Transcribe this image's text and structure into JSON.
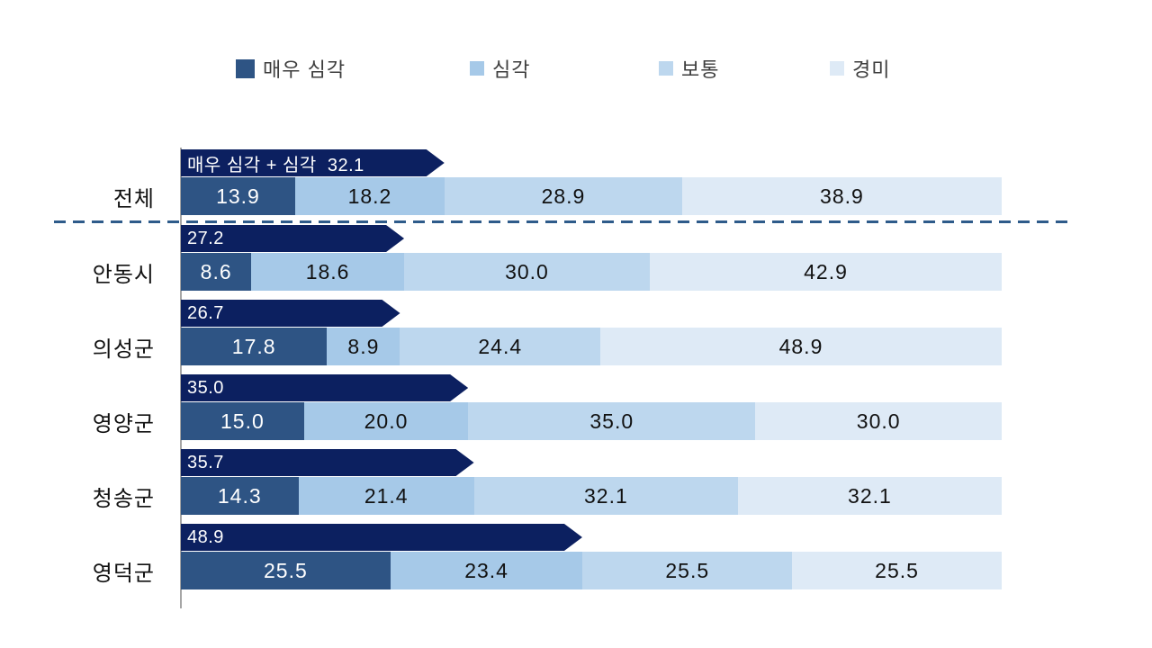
{
  "chart_data": {
    "type": "bar",
    "orientation": "horizontal-stacked",
    "title": "",
    "xlabel": "",
    "ylabel": "",
    "axis_max_percent": 100,
    "legend_position": "top",
    "legend": [
      {
        "label": "매우 심각",
        "color": "#2E5484"
      },
      {
        "label": "심각",
        "color": "#A6C9E8"
      },
      {
        "label": "보통",
        "color": "#BDD7EE"
      },
      {
        "label": "경미",
        "color": "#DEEAF6"
      }
    ],
    "callout": {
      "color": "#0C2060",
      "text_color": "#FFFFFF",
      "meaning": "매우 심각 + 심각 합계"
    },
    "separator_after_row_index": 0,
    "rows": [
      {
        "category": "전체",
        "values": [
          13.9,
          18.2,
          28.9,
          38.9
        ],
        "combined": 32.1,
        "callout_text": "매우 심각 + 심각  32.1"
      },
      {
        "category": "안동시",
        "values": [
          8.6,
          18.6,
          30.0,
          42.9
        ],
        "combined": 27.2,
        "callout_text": "27.2"
      },
      {
        "category": "의성군",
        "values": [
          17.8,
          8.9,
          24.4,
          48.9
        ],
        "combined": 26.7,
        "callout_text": "26.7"
      },
      {
        "category": "영양군",
        "values": [
          15.0,
          20.0,
          35.0,
          30.0
        ],
        "combined": 35.0,
        "callout_text": "35.0"
      },
      {
        "category": "청송군",
        "values": [
          14.3,
          21.4,
          32.1,
          32.1
        ],
        "combined": 35.7,
        "callout_text": "35.7"
      },
      {
        "category": "영덕군",
        "values": [
          25.5,
          23.4,
          25.5,
          25.5
        ],
        "combined": 48.9,
        "callout_text": "48.9"
      }
    ],
    "colors": {
      "axis_line": "#A6A6A6",
      "separator_dash": "#2E5B8A",
      "value_text_dark_segment": "#FFFFFF",
      "value_text_light_segment": "#111111"
    }
  }
}
